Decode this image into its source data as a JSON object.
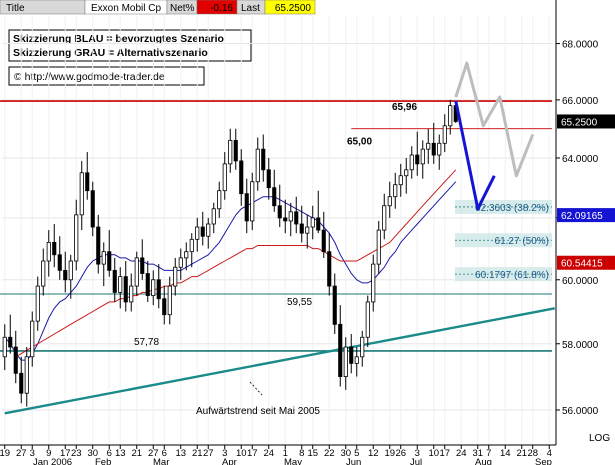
{
  "header": {
    "title_label": "Title",
    "instrument": "Exxon Mobil Cp",
    "netpct_label": "Net%",
    "netpct_value": "-0.16",
    "last_label": "Last",
    "last_value": "65.2500"
  },
  "legend": {
    "line1": "Skizzierung BLAU = bevorzugtes Szenario",
    "line2": "Skizzierung GRAU = Alternativszenario",
    "copyright": "© http://www.godmode-trader.de"
  },
  "colors": {
    "candle": "#000000",
    "ma_short": "#1a1aa8",
    "ma_long": "#cc1a1a",
    "resistance": "#cc0000",
    "support": "#1a7a7a",
    "trend": "#1a8a8a",
    "scenario_blue": "#1414d2",
    "scenario_gray": "#bdbdbd",
    "fib_box": "#cfe7e7",
    "price_tag": "#000000",
    "tag_blue": "#1414d2",
    "tag_red": "#cc0000"
  },
  "chart_data": {
    "type": "candlestick",
    "title": "Exxon Mobil Cp",
    "y_scale": "log",
    "ylim": [
      55.0,
      69.0
    ],
    "yticks": [
      56.0,
      58.0,
      60.0,
      62.0,
      64.0,
      66.0,
      68.0
    ],
    "ytick_labels": [
      "56.0000",
      "58.0000",
      "60.0000",
      "62.0000",
      "64.0000",
      "66.0000",
      "68.0000"
    ],
    "y_axis_type_label": "LOG",
    "x_tick_labels": [
      "19",
      "27",
      "3",
      "9",
      "17",
      "23",
      "30",
      "6",
      "13",
      "21",
      "27",
      "6",
      "13",
      "21",
      "27",
      "3",
      "10",
      "17",
      "24",
      "1",
      "8",
      "15",
      "22",
      "30",
      "5",
      "12",
      "19",
      "26",
      "3",
      "10",
      "17",
      "24",
      "31",
      "7",
      "14",
      "21",
      "28",
      "4"
    ],
    "month_labels": [
      "Jan 2006",
      "Feb",
      "Mar",
      "Apr",
      "May",
      "Jun",
      "Jul",
      "Aug",
      "Sep"
    ],
    "ohlc": [
      [
        57.6,
        58.6,
        57.2,
        58.2
      ],
      [
        58.2,
        58.9,
        57.7,
        57.9
      ],
      [
        57.9,
        58.4,
        56.8,
        57.1
      ],
      [
        57.1,
        57.6,
        56.2,
        56.5
      ],
      [
        56.5,
        57.9,
        56.1,
        57.6
      ],
      [
        57.6,
        59.0,
        57.3,
        58.7
      ],
      [
        58.7,
        60.1,
        58.4,
        59.8
      ],
      [
        59.8,
        61.0,
        59.5,
        60.6
      ],
      [
        60.6,
        61.6,
        60.1,
        61.2
      ],
      [
        61.2,
        61.8,
        60.4,
        60.8
      ],
      [
        60.8,
        61.4,
        60.0,
        60.3
      ],
      [
        60.3,
        60.9,
        59.6,
        60.0
      ],
      [
        60.0,
        60.8,
        59.4,
        60.6
      ],
      [
        60.6,
        62.6,
        60.3,
        62.1
      ],
      [
        62.1,
        63.9,
        61.6,
        63.5
      ],
      [
        63.5,
        64.2,
        62.6,
        62.9
      ],
      [
        62.9,
        63.2,
        61.4,
        61.7
      ],
      [
        61.7,
        62.1,
        60.2,
        60.5
      ],
      [
        60.5,
        61.2,
        59.8,
        60.9
      ],
      [
        60.9,
        61.6,
        60.1,
        60.3
      ],
      [
        60.3,
        60.7,
        59.3,
        59.6
      ],
      [
        59.6,
        60.4,
        59.1,
        60.1
      ],
      [
        60.1,
        60.6,
        59.0,
        59.3
      ],
      [
        59.3,
        60.2,
        59.0,
        59.8
      ],
      [
        59.8,
        60.9,
        59.5,
        60.7
      ],
      [
        60.7,
        61.3,
        60.0,
        60.2
      ],
      [
        60.2,
        60.6,
        59.3,
        59.5
      ],
      [
        59.5,
        60.3,
        59.2,
        60.0
      ],
      [
        60.0,
        60.5,
        59.1,
        59.4
      ],
      [
        59.4,
        59.8,
        58.6,
        58.9
      ],
      [
        58.9,
        60.1,
        58.6,
        59.8
      ],
      [
        59.8,
        60.7,
        59.5,
        60.4
      ],
      [
        60.4,
        61.0,
        60.0,
        60.7
      ],
      [
        60.7,
        61.2,
        60.3,
        60.9
      ],
      [
        60.9,
        61.5,
        60.4,
        61.3
      ],
      [
        61.3,
        62.0,
        60.9,
        61.7
      ],
      [
        61.7,
        62.2,
        61.1,
        61.4
      ],
      [
        61.4,
        62.0,
        61.0,
        61.8
      ],
      [
        61.8,
        62.5,
        61.5,
        62.3
      ],
      [
        62.3,
        63.2,
        62.0,
        62.9
      ],
      [
        62.9,
        64.2,
        62.6,
        63.8
      ],
      [
        63.8,
        65.0,
        63.5,
        64.6
      ],
      [
        64.6,
        65.0,
        63.6,
        63.9
      ],
      [
        63.9,
        64.3,
        62.4,
        62.8
      ],
      [
        62.8,
        63.3,
        61.5,
        61.9
      ],
      [
        61.9,
        63.5,
        61.6,
        63.2
      ],
      [
        63.2,
        64.7,
        62.9,
        64.3
      ],
      [
        64.3,
        64.8,
        63.2,
        63.6
      ],
      [
        63.6,
        64.0,
        62.6,
        63.0
      ],
      [
        63.0,
        63.6,
        62.2,
        62.4
      ],
      [
        62.4,
        63.1,
        61.7,
        62.0
      ],
      [
        62.0,
        62.6,
        61.5,
        61.9
      ],
      [
        61.9,
        62.5,
        61.4,
        62.2
      ],
      [
        62.2,
        62.7,
        61.5,
        61.8
      ],
      [
        61.8,
        62.4,
        61.2,
        61.5
      ],
      [
        61.5,
        62.1,
        61.0,
        61.7
      ],
      [
        61.7,
        62.4,
        61.3,
        62.0
      ],
      [
        62.0,
        62.9,
        61.5,
        61.6
      ],
      [
        61.6,
        62.2,
        60.7,
        60.9
      ],
      [
        60.9,
        61.5,
        59.5,
        59.8
      ],
      [
        59.8,
        60.2,
        58.3,
        58.6
      ],
      [
        58.6,
        59.2,
        56.7,
        57.0
      ],
      [
        57.0,
        58.2,
        56.6,
        57.9
      ],
      [
        57.9,
        58.3,
        57.1,
        57.4
      ],
      [
        57.4,
        57.9,
        57.0,
        57.6
      ],
      [
        57.6,
        58.4,
        57.3,
        58.2
      ],
      [
        58.2,
        59.5,
        57.9,
        59.3
      ],
      [
        59.3,
        60.8,
        59.0,
        60.5
      ],
      [
        60.5,
        61.9,
        60.2,
        61.6
      ],
      [
        61.6,
        62.8,
        61.3,
        62.4
      ],
      [
        62.4,
        63.2,
        62.0,
        62.7
      ],
      [
        62.7,
        63.5,
        62.3,
        63.1
      ],
      [
        63.1,
        63.8,
        62.7,
        63.4
      ],
      [
        63.4,
        64.0,
        62.8,
        63.6
      ],
      [
        63.6,
        64.4,
        63.3,
        64.1
      ],
      [
        64.1,
        64.9,
        63.4,
        63.8
      ],
      [
        63.8,
        64.6,
        63.3,
        64.3
      ],
      [
        64.3,
        65.0,
        63.8,
        64.5
      ],
      [
        64.5,
        65.2,
        63.8,
        64.1
      ],
      [
        64.1,
        64.8,
        63.6,
        64.5
      ],
      [
        64.5,
        65.5,
        64.2,
        65.1
      ],
      [
        65.1,
        66.0,
        64.8,
        65.8
      ],
      [
        65.8,
        65.96,
        65.2,
        65.25
      ]
    ],
    "ma_short": [
      58.2,
      58.0,
      57.7,
      57.5,
      57.5,
      57.7,
      58.0,
      58.4,
      58.8,
      59.1,
      59.3,
      59.4,
      59.6,
      59.8,
      60.1,
      60.4,
      60.6,
      60.7,
      60.8,
      60.8,
      60.8,
      60.7,
      60.7,
      60.6,
      60.6,
      60.6,
      60.5,
      60.5,
      60.4,
      60.3,
      60.3,
      60.3,
      60.3,
      60.4,
      60.5,
      60.6,
      60.7,
      60.8,
      61.0,
      61.2,
      61.5,
      61.8,
      62.1,
      62.3,
      62.4,
      62.5,
      62.6,
      62.7,
      62.7,
      62.7,
      62.6,
      62.5,
      62.4,
      62.3,
      62.2,
      62.1,
      62.0,
      61.9,
      61.7,
      61.5,
      61.2,
      60.8,
      60.5,
      60.2,
      60.0,
      59.9,
      59.9,
      60.0,
      60.2,
      60.4,
      60.7,
      60.9,
      61.2,
      61.4,
      61.6,
      61.8,
      62.0,
      62.2,
      62.4,
      62.6,
      62.8,
      63.0,
      63.2
    ],
    "ma_long_start_index": 2,
    "ma_long": [
      57.6,
      57.7,
      57.8,
      57.9,
      58.0,
      58.1,
      58.2,
      58.3,
      58.4,
      58.5,
      58.6,
      58.7,
      58.8,
      58.9,
      59.0,
      59.1,
      59.2,
      59.3,
      59.3,
      59.4,
      59.4,
      59.5,
      59.5,
      59.6,
      59.6,
      59.7,
      59.7,
      59.8,
      59.8,
      59.9,
      59.9,
      60.0,
      60.1,
      60.1,
      60.2,
      60.3,
      60.4,
      60.5,
      60.6,
      60.7,
      60.8,
      60.9,
      61.0,
      61.0,
      61.1,
      61.1,
      61.1,
      61.1,
      61.1,
      61.1,
      61.1,
      61.1,
      61.1,
      61.1,
      61.0,
      61.0,
      60.9,
      60.8,
      60.7,
      60.6,
      60.6,
      60.6,
      60.6,
      60.7,
      60.8,
      60.9,
      61.0,
      61.1,
      61.2,
      61.4,
      61.6,
      61.8,
      62.0,
      62.2,
      62.4,
      62.6,
      62.8,
      63.0,
      63.2,
      63.4,
      63.6
    ],
    "levels": {
      "resistance": {
        "value": 65.96,
        "label": "65,96"
      },
      "resistance2": {
        "value": 65.0,
        "label": "65,00"
      },
      "support1": {
        "value": 59.55,
        "label": "59,55"
      },
      "support2": {
        "value": 57.78,
        "label": "57,78"
      }
    },
    "fib_levels": [
      {
        "value": 62.3603,
        "label": "62.3603 (38.2%)"
      },
      {
        "value": 61.27,
        "label": "61.27 (50%)"
      },
      {
        "value": 60.1797,
        "label": "60.1797 (61.8%)"
      }
    ],
    "trendline": {
      "start_index": 0,
      "start_value": 55.9,
      "end_index": 100,
      "end_value": 59.1,
      "label": "Aufwärtstrend seit Mai 2005"
    },
    "scenario_blue": [
      [
        82,
        65.96
      ],
      [
        86,
        62.3
      ],
      [
        89,
        63.4
      ]
    ],
    "scenario_gray": [
      [
        82,
        66.1
      ],
      [
        84,
        67.3
      ],
      [
        87,
        65.1
      ],
      [
        90,
        66.1
      ],
      [
        93,
        63.4
      ],
      [
        96,
        64.8
      ]
    ],
    "price_tags": [
      {
        "value": 65.25,
        "label": "65.2500",
        "color_key": "price_tag"
      },
      {
        "value": 62.09165,
        "label": "62.09165",
        "color_key": "tag_blue"
      },
      {
        "value": 60.54415,
        "label": "60.54415",
        "color_key": "tag_red"
      }
    ],
    "grid": true
  }
}
